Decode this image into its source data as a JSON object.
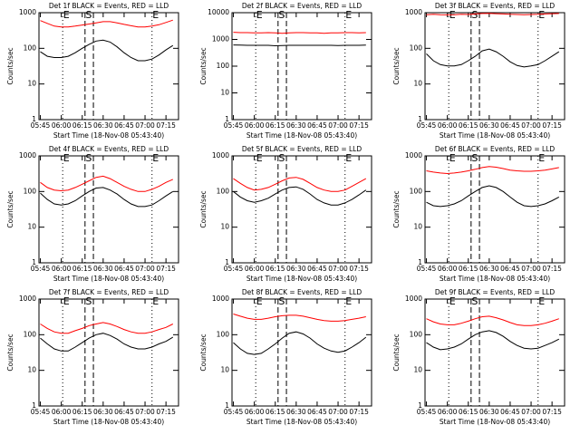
{
  "chart_data": [
    {
      "type": "line",
      "title": "Det 1f BLACK = Events, RED = LLD",
      "xlabel": "Start Time (18-Nov-08 05:43:40)",
      "ylabel": "Counts/sec",
      "log": true,
      "x": [
        "05:45",
        "05:50",
        "05:55",
        "06:00",
        "06:05",
        "06:10",
        "06:15",
        "06:20",
        "06:25",
        "06:30",
        "06:35",
        "06:40",
        "06:45",
        "06:50",
        "06:55",
        "07:00",
        "07:05",
        "07:10",
        "07:15",
        "07:20"
      ],
      "xlim": [
        "05:44",
        "07:24"
      ],
      "xticks": [
        "05:45",
        "06:00",
        "06:15",
        "06:30",
        "06:45",
        "07:00",
        "07:15"
      ],
      "ylim": [
        1,
        1000
      ],
      "yticks": [
        1,
        10,
        100,
        1000
      ],
      "markers": [
        {
          "label": "E",
          "x": "06:01",
          "style": "dotted"
        },
        {
          "label": "S",
          "x": "06:17",
          "style": "dashed"
        },
        {
          "x": "06:23",
          "style": "dashed"
        },
        {
          "label": "E",
          "x": "07:05",
          "style": "dotted"
        }
      ],
      "series": [
        {
          "color": "#000000",
          "values": [
            80,
            60,
            55,
            55,
            60,
            75,
            100,
            130,
            160,
            170,
            150,
            110,
            75,
            55,
            45,
            45,
            50,
            65,
            90,
            120
          ]
        },
        {
          "color": "#ff0000",
          "values": [
            600,
            500,
            420,
            400,
            400,
            420,
            450,
            480,
            520,
            560,
            560,
            520,
            470,
            430,
            400,
            400,
            420,
            460,
            530,
            620
          ]
        }
      ]
    },
    {
      "type": "line",
      "title": "Det 2f BLACK = Events, RED = LLD",
      "xlabel": "Start Time (18-Nov-08 05:43:40)",
      "ylabel": "Counts/sec",
      "log": true,
      "x": [
        "05:45",
        "05:50",
        "05:55",
        "06:00",
        "06:05",
        "06:10",
        "06:15",
        "06:20",
        "06:25",
        "06:30",
        "06:35",
        "06:40",
        "06:45",
        "06:50",
        "06:55",
        "07:00",
        "07:05",
        "07:10",
        "07:15",
        "07:20"
      ],
      "xlim": [
        "05:44",
        "07:24"
      ],
      "xticks": [
        "05:45",
        "06:00",
        "06:15",
        "06:30",
        "06:45",
        "07:00",
        "07:15"
      ],
      "ylim": [
        1,
        10000
      ],
      "yticks": [
        1,
        10,
        100,
        1000,
        10000
      ],
      "markers": [
        {
          "label": "E",
          "x": "06:01",
          "style": "dotted"
        },
        {
          "label": "S",
          "x": "06:17",
          "style": "dashed"
        },
        {
          "x": "06:23",
          "style": "dashed"
        },
        {
          "label": "E",
          "x": "07:05",
          "style": "dotted"
        }
      ],
      "series": [
        {
          "color": "#000000",
          "values": [
            620,
            610,
            600,
            600,
            600,
            600,
            580,
            590,
            600,
            600,
            600,
            600,
            600,
            600,
            600,
            590,
            600,
            600,
            600,
            610
          ]
        },
        {
          "color": "#ff0000",
          "values": [
            1850,
            1800,
            1800,
            1750,
            1750,
            1800,
            1750,
            1700,
            1750,
            1800,
            1800,
            1750,
            1750,
            1700,
            1750,
            1750,
            1800,
            1800,
            1750,
            1800
          ]
        }
      ]
    },
    {
      "type": "line",
      "title": "Det 3f BLACK = Events, RED = LLD",
      "xlabel": "Start Time (18-Nov-08 05:43:40)",
      "ylabel": "Counts/sec",
      "log": true,
      "x": [
        "05:45",
        "05:50",
        "05:55",
        "06:00",
        "06:05",
        "06:10",
        "06:15",
        "06:20",
        "06:25",
        "06:30",
        "06:35",
        "06:40",
        "06:45",
        "06:50",
        "06:55",
        "07:00",
        "07:05",
        "07:10",
        "07:15",
        "07:20"
      ],
      "xlim": [
        "05:44",
        "07:24"
      ],
      "xticks": [
        "05:45",
        "06:00",
        "06:15",
        "06:30",
        "06:45",
        "07:00",
        "07:15"
      ],
      "ylim": [
        1,
        1000
      ],
      "yticks": [
        1,
        10,
        100,
        1000
      ],
      "markers": [
        {
          "label": "E",
          "x": "06:01",
          "style": "dotted"
        },
        {
          "label": "S",
          "x": "06:17",
          "style": "dashed"
        },
        {
          "x": "06:23",
          "style": "dashed"
        },
        {
          "label": "E",
          "x": "07:05",
          "style": "dotted"
        }
      ],
      "series": [
        {
          "color": "#000000",
          "values": [
            70,
            45,
            35,
            32,
            32,
            35,
            45,
            60,
            85,
            95,
            80,
            60,
            42,
            33,
            30,
            32,
            35,
            45,
            60,
            80
          ]
        },
        {
          "color": "#ff0000",
          "values": [
            880,
            900,
            880,
            870,
            880,
            900,
            890,
            920,
            950,
            960,
            940,
            920,
            900,
            890,
            880,
            890,
            900,
            920,
            940,
            950
          ]
        }
      ]
    },
    {
      "type": "line",
      "title": "Det 4f BLACK = Events, RED = LLD",
      "xlabel": "Start Time (18-Nov-08 05:43:40)",
      "ylabel": "Counts/sec",
      "log": true,
      "x": [
        "05:45",
        "05:50",
        "05:55",
        "06:00",
        "06:05",
        "06:10",
        "06:15",
        "06:20",
        "06:25",
        "06:30",
        "06:35",
        "06:40",
        "06:45",
        "06:50",
        "06:55",
        "07:00",
        "07:05",
        "07:10",
        "07:15",
        "07:20"
      ],
      "xlim": [
        "05:44",
        "07:24"
      ],
      "xticks": [
        "05:45",
        "06:00",
        "06:15",
        "06:30",
        "06:45",
        "07:00",
        "07:15"
      ],
      "ylim": [
        1,
        1000
      ],
      "yticks": [
        1,
        10,
        100,
        1000
      ],
      "markers": [
        {
          "label": "E",
          "x": "06:01",
          "style": "dotted"
        },
        {
          "label": "S",
          "x": "06:17",
          "style": "dashed"
        },
        {
          "x": "06:23",
          "style": "dashed"
        },
        {
          "label": "E",
          "x": "07:05",
          "style": "dotted"
        }
      ],
      "series": [
        {
          "color": "#000000",
          "values": [
            90,
            60,
            45,
            42,
            45,
            55,
            75,
            100,
            125,
            130,
            110,
            85,
            60,
            45,
            38,
            38,
            42,
            55,
            75,
            100
          ]
        },
        {
          "color": "#ff0000",
          "values": [
            180,
            130,
            110,
            105,
            110,
            130,
            160,
            200,
            250,
            270,
            230,
            180,
            140,
            115,
            100,
            100,
            115,
            140,
            180,
            220
          ]
        }
      ]
    },
    {
      "type": "line",
      "title": "Det 5f BLACK = Events, RED = LLD",
      "xlabel": "Start Time (18-Nov-08 05:43:40)",
      "ylabel": "Counts/sec",
      "log": true,
      "x": [
        "05:45",
        "05:50",
        "05:55",
        "06:00",
        "06:05",
        "06:10",
        "06:15",
        "06:20",
        "06:25",
        "06:30",
        "06:35",
        "06:40",
        "06:45",
        "06:50",
        "06:55",
        "07:00",
        "07:05",
        "07:10",
        "07:15",
        "07:20"
      ],
      "xlim": [
        "05:44",
        "07:24"
      ],
      "xticks": [
        "05:45",
        "06:00",
        "06:15",
        "06:30",
        "06:45",
        "07:00",
        "07:15"
      ],
      "ylim": [
        1,
        1000
      ],
      "yticks": [
        1,
        10,
        100,
        1000
      ],
      "markers": [
        {
          "label": "E",
          "x": "06:01",
          "style": "dotted"
        },
        {
          "label": "S",
          "x": "06:17",
          "style": "dashed"
        },
        {
          "x": "06:23",
          "style": "dashed"
        },
        {
          "label": "E",
          "x": "07:05",
          "style": "dotted"
        }
      ],
      "series": [
        {
          "color": "#000000",
          "values": [
            100,
            70,
            55,
            50,
            55,
            65,
            85,
            110,
            130,
            135,
            115,
            85,
            60,
            48,
            42,
            42,
            48,
            60,
            80,
            110
          ]
        },
        {
          "color": "#ff0000",
          "values": [
            230,
            170,
            130,
            110,
            115,
            130,
            160,
            200,
            240,
            250,
            220,
            170,
            130,
            110,
            100,
            100,
            110,
            140,
            180,
            230
          ]
        }
      ]
    },
    {
      "type": "line",
      "title": "Det 6f BLACK = Events, RED = LLD",
      "xlabel": "Start Time (18-Nov-08 05:43:40)",
      "ylabel": "Counts/sec",
      "log": true,
      "x": [
        "05:45",
        "05:50",
        "05:55",
        "06:00",
        "06:05",
        "06:10",
        "06:15",
        "06:20",
        "06:25",
        "06:30",
        "06:35",
        "06:40",
        "06:45",
        "06:50",
        "06:55",
        "07:00",
        "07:05",
        "07:10",
        "07:15",
        "07:20"
      ],
      "xlim": [
        "05:44",
        "07:24"
      ],
      "xticks": [
        "05:45",
        "06:00",
        "06:15",
        "06:30",
        "06:45",
        "07:00",
        "07:15"
      ],
      "ylim": [
        1,
        1000
      ],
      "yticks": [
        1,
        10,
        100,
        1000
      ],
      "markers": [
        {
          "label": "E",
          "x": "06:01",
          "style": "dotted"
        },
        {
          "label": "S",
          "x": "06:17",
          "style": "dashed"
        },
        {
          "x": "06:23",
          "style": "dashed"
        },
        {
          "label": "E",
          "x": "07:05",
          "style": "dotted"
        }
      ],
      "series": [
        {
          "color": "#000000",
          "values": [
            50,
            40,
            38,
            40,
            45,
            55,
            75,
            100,
            130,
            145,
            130,
            100,
            70,
            50,
            40,
            38,
            40,
            45,
            55,
            70
          ]
        },
        {
          "color": "#ff0000",
          "values": [
            380,
            350,
            330,
            320,
            330,
            350,
            380,
            420,
            470,
            500,
            480,
            440,
            400,
            380,
            370,
            370,
            380,
            400,
            430,
            470
          ]
        }
      ]
    },
    {
      "type": "line",
      "title": "Det 7f BLACK = Events, RED = LLD",
      "xlabel": "Start Time (18-Nov-08 05:43:40)",
      "ylabel": "Counts/sec",
      "log": true,
      "x": [
        "05:45",
        "05:50",
        "05:55",
        "06:00",
        "06:05",
        "06:10",
        "06:15",
        "06:20",
        "06:25",
        "06:30",
        "06:35",
        "06:40",
        "06:45",
        "06:50",
        "06:55",
        "07:00",
        "07:05",
        "07:10",
        "07:15",
        "07:20"
      ],
      "xlim": [
        "05:44",
        "07:24"
      ],
      "xticks": [
        "05:45",
        "06:00",
        "06:15",
        "06:30",
        "06:45",
        "07:00",
        "07:15"
      ],
      "ylim": [
        1,
        1000
      ],
      "yticks": [
        1,
        10,
        100,
        1000
      ],
      "markers": [
        {
          "label": "E",
          "x": "06:01",
          "style": "dotted"
        },
        {
          "label": "S",
          "x": "06:17",
          "style": "dashed"
        },
        {
          "x": "06:23",
          "style": "dashed"
        },
        {
          "label": "E",
          "x": "07:05",
          "style": "dotted"
        }
      ],
      "series": [
        {
          "color": "#000000",
          "values": [
            80,
            55,
            40,
            35,
            35,
            45,
            60,
            80,
            100,
            110,
            95,
            75,
            55,
            45,
            40,
            40,
            45,
            55,
            65,
            85
          ]
        },
        {
          "color": "#ff0000",
          "values": [
            200,
            150,
            120,
            110,
            110,
            130,
            150,
            180,
            200,
            220,
            200,
            170,
            140,
            120,
            110,
            110,
            120,
            140,
            160,
            200
          ]
        }
      ]
    },
    {
      "type": "line",
      "title": "Det 8f BLACK = Events, RED = LLD",
      "xlabel": "Start Time (18-Nov-08 05:43:40)",
      "ylabel": "Counts/sec",
      "log": true,
      "x": [
        "05:45",
        "05:50",
        "05:55",
        "06:00",
        "06:05",
        "06:10",
        "06:15",
        "06:20",
        "06:25",
        "06:30",
        "06:35",
        "06:40",
        "06:45",
        "06:50",
        "06:55",
        "07:00",
        "07:05",
        "07:10",
        "07:15",
        "07:20"
      ],
      "xlim": [
        "05:44",
        "07:24"
      ],
      "xticks": [
        "05:45",
        "06:00",
        "06:15",
        "06:30",
        "06:45",
        "07:00",
        "07:15"
      ],
      "ylim": [
        1,
        1000
      ],
      "yticks": [
        1,
        10,
        100,
        1000
      ],
      "markers": [
        {
          "label": "E",
          "x": "06:01",
          "style": "dotted"
        },
        {
          "label": "S",
          "x": "06:17",
          "style": "dashed"
        },
        {
          "x": "06:23",
          "style": "dashed"
        },
        {
          "label": "E",
          "x": "07:05",
          "style": "dotted"
        }
      ],
      "series": [
        {
          "color": "#000000",
          "values": [
            60,
            40,
            30,
            28,
            30,
            40,
            55,
            80,
            110,
            120,
            105,
            80,
            55,
            42,
            35,
            32,
            35,
            45,
            60,
            85
          ]
        },
        {
          "color": "#ff0000",
          "values": [
            380,
            330,
            290,
            270,
            270,
            290,
            320,
            340,
            350,
            350,
            330,
            300,
            270,
            250,
            240,
            240,
            250,
            270,
            290,
            320
          ]
        }
      ]
    },
    {
      "type": "line",
      "title": "Det 9f BLACK = Events, RED = LLD",
      "xlabel": "Start Time (18-Nov-08 05:43:40)",
      "ylabel": "Counts/sec",
      "log": true,
      "x": [
        "05:45",
        "05:50",
        "05:55",
        "06:00",
        "06:05",
        "06:10",
        "06:15",
        "06:20",
        "06:25",
        "06:30",
        "06:35",
        "06:40",
        "06:45",
        "06:50",
        "06:55",
        "07:00",
        "07:05",
        "07:10",
        "07:15",
        "07:20"
      ],
      "xlim": [
        "05:44",
        "07:24"
      ],
      "xticks": [
        "05:45",
        "06:00",
        "06:15",
        "06:30",
        "06:45",
        "07:00",
        "07:15"
      ],
      "ylim": [
        1,
        1000
      ],
      "yticks": [
        1,
        10,
        100,
        1000
      ],
      "markers": [
        {
          "label": "E",
          "x": "06:01",
          "style": "dotted"
        },
        {
          "label": "S",
          "x": "06:17",
          "style": "dashed"
        },
        {
          "x": "06:23",
          "style": "dashed"
        },
        {
          "label": "E",
          "x": "07:05",
          "style": "dotted"
        }
      ],
      "series": [
        {
          "color": "#000000",
          "values": [
            60,
            45,
            38,
            40,
            45,
            55,
            75,
            100,
            120,
            130,
            115,
            90,
            65,
            50,
            42,
            40,
            42,
            50,
            60,
            75
          ]
        },
        {
          "color": "#ff0000",
          "values": [
            280,
            230,
            200,
            190,
            190,
            210,
            240,
            280,
            320,
            330,
            300,
            260,
            220,
            190,
            180,
            180,
            190,
            210,
            240,
            280
          ]
        }
      ]
    }
  ]
}
